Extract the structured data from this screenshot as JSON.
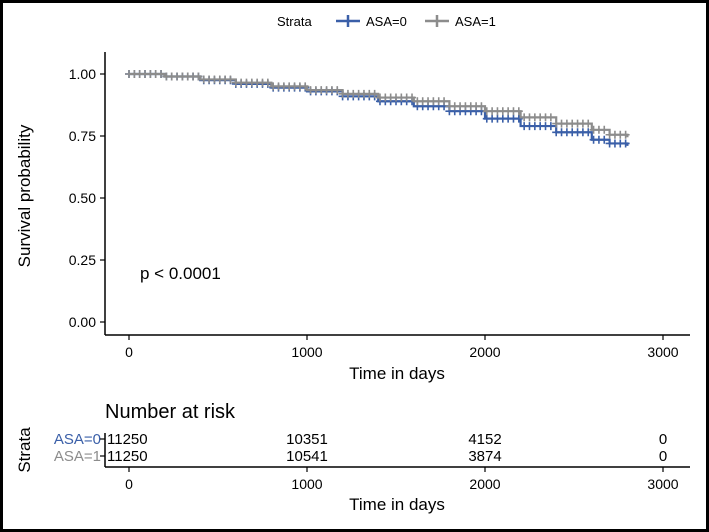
{
  "chart_data": [
    {
      "type": "line",
      "legend": {
        "title": "Strata",
        "position": "top",
        "entries": [
          "ASA=0",
          "ASA=1"
        ]
      },
      "xlabel": "Time in days",
      "ylabel": "Survival probability",
      "xlim": [
        0,
        3000
      ],
      "ylim": [
        0,
        1
      ],
      "xticks": [
        "0",
        "1000",
        "2000",
        "3000"
      ],
      "yticks": [
        "0.00",
        "0.25",
        "0.50",
        "0.75",
        "1.00"
      ],
      "annotation": "p < 0.0001",
      "grid": false,
      "series": [
        {
          "name": "ASA=0",
          "color": "#3A5FA8",
          "x": [
            0,
            200,
            400,
            600,
            800,
            1000,
            1200,
            1400,
            1600,
            1800,
            2000,
            2200,
            2400,
            2600,
            2700,
            2800
          ],
          "y": [
            1.0,
            0.99,
            0.975,
            0.96,
            0.945,
            0.93,
            0.91,
            0.89,
            0.87,
            0.85,
            0.82,
            0.79,
            0.765,
            0.735,
            0.72,
            0.71
          ]
        },
        {
          "name": "ASA=1",
          "color": "#8C8C8C",
          "x": [
            0,
            200,
            400,
            600,
            800,
            1000,
            1200,
            1400,
            1600,
            1800,
            2000,
            2200,
            2400,
            2600,
            2700,
            2800
          ],
          "y": [
            1.0,
            0.99,
            0.978,
            0.965,
            0.95,
            0.935,
            0.92,
            0.905,
            0.89,
            0.87,
            0.85,
            0.825,
            0.8,
            0.775,
            0.755,
            0.745
          ]
        }
      ]
    },
    {
      "type": "table",
      "title": "Number at risk",
      "ylabel": "Strata",
      "xlabel": "Time in days",
      "xlim": [
        0,
        3000
      ],
      "xticks": [
        "0",
        "1000",
        "2000",
        "3000"
      ],
      "times": [
        0,
        1000,
        2000,
        3000
      ],
      "rows": [
        {
          "name": "ASA=0",
          "color": "#3A5FA8",
          "values": [
            "11250",
            "10351",
            "4152",
            "0"
          ]
        },
        {
          "name": "ASA=1",
          "color": "#8C8C8C",
          "values": [
            "11250",
            "10541",
            "3874",
            "0"
          ]
        }
      ]
    }
  ]
}
